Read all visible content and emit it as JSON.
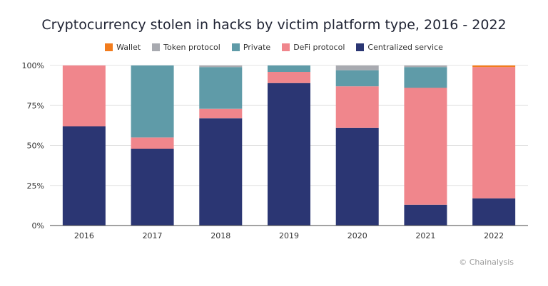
{
  "chart_data": {
    "type": "bar",
    "stacked": true,
    "title": "Cryptocurrency stolen in hacks by victim platform type, 2016 - 2022",
    "xlabel": "",
    "ylabel": "",
    "ylim": [
      0,
      100
    ],
    "y_ticks": [
      "0%",
      "25%",
      "50%",
      "75%",
      "100%"
    ],
    "grid": true,
    "legend_position": "top-center",
    "categories": [
      "2016",
      "2017",
      "2018",
      "2019",
      "2020",
      "2021",
      "2022"
    ],
    "series": [
      {
        "name": "Centralized service",
        "color": "#2b3673",
        "values": [
          62,
          48,
          67,
          89,
          61,
          13,
          17
        ]
      },
      {
        "name": "DeFi protocol",
        "color": "#f0868c",
        "values": [
          38,
          7,
          6,
          7,
          26,
          73,
          82
        ]
      },
      {
        "name": "Private",
        "color": "#5f9ba8",
        "values": [
          0,
          45,
          26,
          4,
          10,
          13,
          0
        ]
      },
      {
        "name": "Token protocol",
        "color": "#a8aab0",
        "values": [
          0,
          0,
          1,
          0,
          3,
          1,
          0
        ]
      },
      {
        "name": "Wallet",
        "color": "#f27c1d",
        "values": [
          0,
          0,
          0,
          0,
          0,
          0,
          1
        ]
      }
    ],
    "legend_order": [
      "Wallet",
      "Token protocol",
      "Private",
      "DeFi protocol",
      "Centralized service"
    ]
  },
  "source": "© Chainalysis"
}
